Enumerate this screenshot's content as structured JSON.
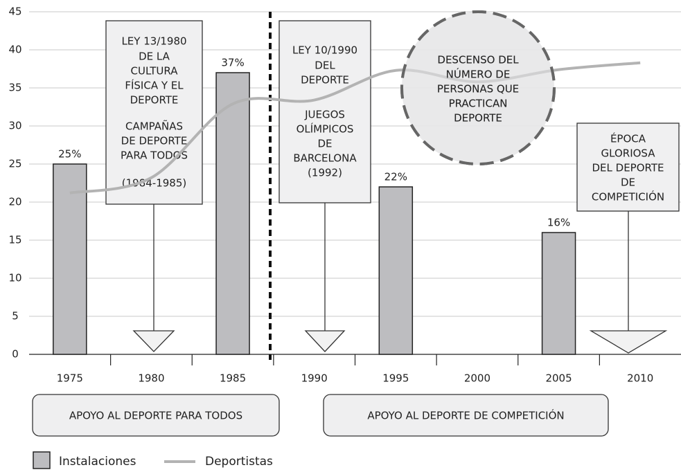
{
  "chart_data": {
    "type": "bar",
    "categories": [
      "1975",
      "1980",
      "1985",
      "1990",
      "1995",
      "2000",
      "2005",
      "2010"
    ],
    "series": [
      {
        "name": "Instalaciones",
        "type": "bar",
        "color": "#bdbdc0",
        "values": [
          25,
          null,
          37,
          null,
          22,
          null,
          16,
          null
        ],
        "value_labels": [
          "25%",
          null,
          "37%",
          null,
          "22%",
          null,
          "16%",
          null
        ]
      },
      {
        "name": "Deportistas",
        "type": "line",
        "color": "#b3b3b3",
        "values": [
          21.2,
          23.2,
          32.9,
          33.4,
          37.3,
          35.8,
          37.4,
          38.3
        ]
      }
    ],
    "ylim": [
      0,
      45
    ],
    "yticks": [
      0,
      5,
      10,
      15,
      20,
      25,
      30,
      35,
      40,
      45
    ],
    "grid": true,
    "annotations": [
      {
        "lines": [
          "LEY 13/1980",
          "DE LA",
          "CULTURA",
          "FÍSICA Y EL",
          "DEPORTE",
          "CAMPAÑAS",
          "DE DEPORTE",
          "PARA TODOS",
          "(1984-1985)"
        ]
      },
      {
        "lines": [
          "LEY 10/1990",
          "DEL",
          "DEPORTE",
          "JUEGOS",
          "OLÍMPICOS",
          "DE",
          "BARCELONA",
          "(1992)"
        ]
      },
      {
        "lines": [
          "DESCENSO DEL",
          "NÚMERO DE",
          "PERSONAS QUE",
          "PRACTICAN",
          "DEPORTE"
        ]
      },
      {
        "lines": [
          "ÉPOCA",
          "GLORIOSA",
          "DEL DEPORTE",
          "DE",
          "COMPETICIÓN"
        ]
      }
    ],
    "phases": [
      "APOYO AL DEPORTE PARA TODOS",
      "APOYO AL DEPORTE DE COMPETICIÓN"
    ]
  }
}
